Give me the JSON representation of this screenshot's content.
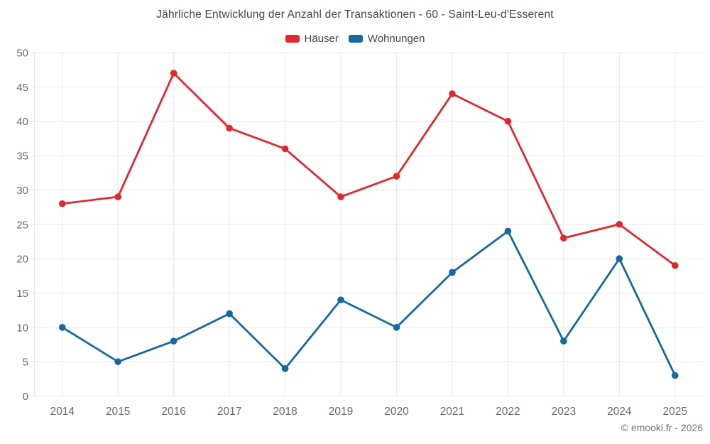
{
  "chart_data": {
    "type": "line",
    "title": "Jährliche Entwicklung der Anzahl der Transaktionen - 60 - Saint-Leu-d'Esserent",
    "categories": [
      "2014",
      "2015",
      "2016",
      "2017",
      "2018",
      "2019",
      "2020",
      "2021",
      "2022",
      "2023",
      "2024",
      "2025"
    ],
    "series": [
      {
        "name": "Häuser",
        "color": "#e0282d",
        "values": [
          28,
          29,
          47,
          39,
          36,
          29,
          32,
          44,
          40,
          23,
          25,
          19
        ]
      },
      {
        "name": "Wohnungen",
        "color": "#1568a0",
        "values": [
          10,
          5,
          8,
          12,
          4,
          14,
          10,
          18,
          24,
          8,
          20,
          3
        ]
      }
    ],
    "xlabel": "",
    "ylabel": "",
    "ylim": [
      0,
      50
    ],
    "ytick_step": 5,
    "grid": true,
    "legend_position": "top"
  },
  "footer": {
    "credit": "© emooki.fr - 2026"
  },
  "style": {
    "grid_color": "#e8e8e8",
    "axis_text_color": "#666b70",
    "title_text_color": "#40474e",
    "footer_text_color": "#6b7176",
    "background": "#ffffff"
  }
}
